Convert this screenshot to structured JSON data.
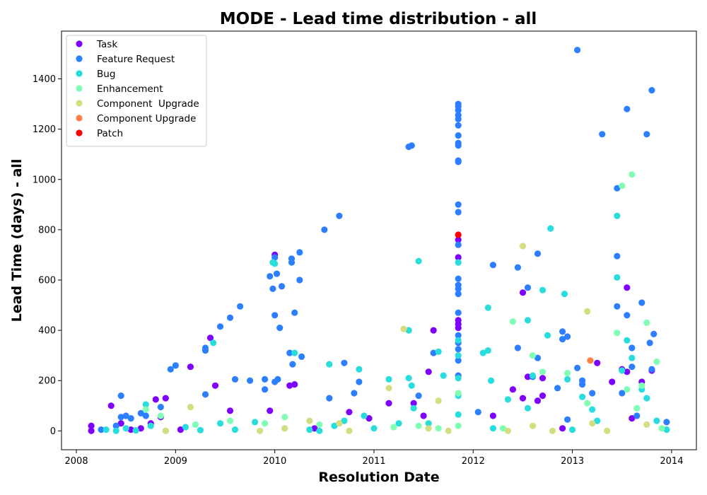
{
  "chart_data": {
    "type": "scatter",
    "title": "MODE - Lead time distribution - all",
    "xlabel": "Resolution Date",
    "ylabel": "Lead Time (days) - all",
    "xlim": [
      2007.85,
      2014.25
    ],
    "ylim": [
      -75,
      1590
    ],
    "x_ticks": [
      "2008",
      "2009",
      "2010",
      "2011",
      "2012",
      "2013",
      "2014"
    ],
    "y_ticks": [
      0,
      200,
      400,
      600,
      800,
      1000,
      1200,
      1400
    ],
    "grid": false,
    "legend_position": "top-left",
    "series": [
      {
        "name": "Task",
        "color": "#8000ff",
        "points": [
          [
            2008.15,
            20
          ],
          [
            2008.15,
            0
          ],
          [
            2008.35,
            100
          ],
          [
            2008.45,
            30
          ],
          [
            2008.55,
            5
          ],
          [
            2008.65,
            10
          ],
          [
            2008.75,
            30
          ],
          [
            2008.8,
            125
          ],
          [
            2008.85,
            55
          ],
          [
            2008.9,
            130
          ],
          [
            2009.05,
            5
          ],
          [
            2009.15,
            255
          ],
          [
            2009.35,
            370
          ],
          [
            2009.4,
            180
          ],
          [
            2009.55,
            80
          ],
          [
            2009.95,
            80
          ],
          [
            2010.0,
            700
          ],
          [
            2010.15,
            180
          ],
          [
            2010.2,
            185
          ],
          [
            2010.4,
            10
          ],
          [
            2010.75,
            75
          ],
          [
            2010.95,
            50
          ],
          [
            2011.15,
            110
          ],
          [
            2011.4,
            110
          ],
          [
            2011.5,
            60
          ],
          [
            2011.55,
            235
          ],
          [
            2011.6,
            400
          ],
          [
            2011.85,
            760
          ],
          [
            2011.85,
            690
          ],
          [
            2011.85,
            440
          ],
          [
            2011.85,
            410
          ],
          [
            2011.85,
            425
          ],
          [
            2012.2,
            60
          ],
          [
            2012.4,
            165
          ],
          [
            2012.5,
            550
          ],
          [
            2012.5,
            130
          ],
          [
            2012.55,
            215
          ],
          [
            2012.65,
            120
          ],
          [
            2012.7,
            140
          ],
          [
            2012.7,
            210
          ],
          [
            2012.9,
            10
          ],
          [
            2013.25,
            270
          ],
          [
            2013.4,
            195
          ],
          [
            2013.5,
            245
          ],
          [
            2013.55,
            570
          ],
          [
            2013.55,
            235
          ],
          [
            2013.6,
            50
          ],
          [
            2013.7,
            195
          ],
          [
            2013.8,
            240
          ]
        ]
      },
      {
        "name": "Feature Request",
        "color": "#2c7fff",
        "points": [
          [
            2008.25,
            5
          ],
          [
            2008.4,
            20
          ],
          [
            2008.45,
            140
          ],
          [
            2008.45,
            55
          ],
          [
            2008.5,
            60
          ],
          [
            2008.55,
            50
          ],
          [
            2008.65,
            70
          ],
          [
            2008.7,
            60
          ],
          [
            2008.85,
            95
          ],
          [
            2008.95,
            245
          ],
          [
            2009.0,
            260
          ],
          [
            2009.3,
            145
          ],
          [
            2009.3,
            330
          ],
          [
            2009.3,
            320
          ],
          [
            2009.45,
            415
          ],
          [
            2009.55,
            450
          ],
          [
            2009.6,
            205
          ],
          [
            2009.65,
            495
          ],
          [
            2009.75,
            200
          ],
          [
            2009.9,
            165
          ],
          [
            2009.9,
            205
          ],
          [
            2009.95,
            615
          ],
          [
            2009.98,
            565
          ],
          [
            2010.0,
            690
          ],
          [
            2010.0,
            460
          ],
          [
            2010.0,
            195
          ],
          [
            2010.02,
            625
          ],
          [
            2010.03,
            205
          ],
          [
            2010.05,
            410
          ],
          [
            2010.07,
            575
          ],
          [
            2010.15,
            310
          ],
          [
            2010.17,
            670
          ],
          [
            2010.17,
            685
          ],
          [
            2010.18,
            265
          ],
          [
            2010.2,
            470
          ],
          [
            2010.25,
            710
          ],
          [
            2010.25,
            600
          ],
          [
            2010.27,
            295
          ],
          [
            2010.5,
            800
          ],
          [
            2010.55,
            130
          ],
          [
            2010.65,
            855
          ],
          [
            2010.7,
            270
          ],
          [
            2010.8,
            150
          ],
          [
            2010.85,
            195
          ],
          [
            2011.35,
            1130
          ],
          [
            2011.38,
            1135
          ],
          [
            2011.45,
            140
          ],
          [
            2011.6,
            310
          ],
          [
            2011.85,
            1300
          ],
          [
            2011.85,
            1290
          ],
          [
            2011.85,
            1275
          ],
          [
            2011.85,
            1255
          ],
          [
            2011.85,
            1240
          ],
          [
            2011.85,
            1215
          ],
          [
            2011.85,
            1175
          ],
          [
            2011.85,
            1145
          ],
          [
            2011.85,
            1135
          ],
          [
            2011.85,
            1075
          ],
          [
            2011.85,
            1070
          ],
          [
            2011.85,
            900
          ],
          [
            2011.85,
            870
          ],
          [
            2011.85,
            740
          ],
          [
            2011.85,
            605
          ],
          [
            2011.85,
            580
          ],
          [
            2011.85,
            565
          ],
          [
            2011.85,
            545
          ],
          [
            2011.85,
            470
          ],
          [
            2011.85,
            380
          ],
          [
            2011.85,
            350
          ],
          [
            2011.85,
            325
          ],
          [
            2011.85,
            280
          ],
          [
            2011.85,
            220
          ],
          [
            2012.05,
            75
          ],
          [
            2012.2,
            660
          ],
          [
            2012.45,
            650
          ],
          [
            2012.45,
            330
          ],
          [
            2012.55,
            570
          ],
          [
            2012.6,
            215
          ],
          [
            2012.65,
            705
          ],
          [
            2012.65,
            290
          ],
          [
            2012.85,
            170
          ],
          [
            2012.9,
            395
          ],
          [
            2012.9,
            365
          ],
          [
            2012.95,
            375
          ],
          [
            2012.95,
            45
          ],
          [
            2013.05,
            1515
          ],
          [
            2013.05,
            250
          ],
          [
            2013.1,
            185
          ],
          [
            2013.1,
            200
          ],
          [
            2013.2,
            150
          ],
          [
            2013.3,
            1180
          ],
          [
            2013.45,
            965
          ],
          [
            2013.45,
            695
          ],
          [
            2013.45,
            495
          ],
          [
            2013.5,
            150
          ],
          [
            2013.55,
            460
          ],
          [
            2013.55,
            1280
          ],
          [
            2013.6,
            330
          ],
          [
            2013.6,
            255
          ],
          [
            2013.65,
            60
          ],
          [
            2013.7,
            510
          ],
          [
            2013.75,
            1180
          ],
          [
            2013.8,
            1355
          ],
          [
            2013.78,
            350
          ],
          [
            2013.8,
            245
          ],
          [
            2013.82,
            385
          ],
          [
            2013.95,
            35
          ]
        ]
      },
      {
        "name": "Bug",
        "color": "#2adddd",
        "points": [
          [
            2008.3,
            5
          ],
          [
            2008.4,
            0
          ],
          [
            2008.5,
            10
          ],
          [
            2008.6,
            2
          ],
          [
            2008.7,
            105
          ],
          [
            2008.75,
            20
          ],
          [
            2008.9,
            0
          ],
          [
            2009.1,
            15
          ],
          [
            2009.25,
            3
          ],
          [
            2009.38,
            350
          ],
          [
            2009.45,
            30
          ],
          [
            2009.6,
            5
          ],
          [
            2009.8,
            35
          ],
          [
            2009.98,
            670
          ],
          [
            2010.0,
            665
          ],
          [
            2010.1,
            10
          ],
          [
            2010.2,
            310
          ],
          [
            2010.35,
            5
          ],
          [
            2010.45,
            0
          ],
          [
            2010.55,
            265
          ],
          [
            2010.6,
            20
          ],
          [
            2010.7,
            40
          ],
          [
            2010.85,
            245
          ],
          [
            2010.9,
            60
          ],
          [
            2011.0,
            10
          ],
          [
            2011.15,
            205
          ],
          [
            2011.25,
            30
          ],
          [
            2011.35,
            400
          ],
          [
            2011.35,
            210
          ],
          [
            2011.38,
            180
          ],
          [
            2011.4,
            90
          ],
          [
            2011.45,
            675
          ],
          [
            2011.55,
            30
          ],
          [
            2011.65,
            315
          ],
          [
            2011.7,
            220
          ],
          [
            2011.85,
            670
          ],
          [
            2011.85,
            360
          ],
          [
            2011.85,
            300
          ],
          [
            2011.85,
            210
          ],
          [
            2011.85,
            140
          ],
          [
            2011.85,
            65
          ],
          [
            2012.1,
            310
          ],
          [
            2012.15,
            320
          ],
          [
            2012.15,
            490
          ],
          [
            2012.18,
            200
          ],
          [
            2012.2,
            10
          ],
          [
            2012.35,
            125
          ],
          [
            2012.55,
            440
          ],
          [
            2012.55,
            90
          ],
          [
            2012.6,
            220
          ],
          [
            2012.7,
            560
          ],
          [
            2012.75,
            380
          ],
          [
            2012.78,
            805
          ],
          [
            2012.92,
            545
          ],
          [
            2012.95,
            205
          ],
          [
            2013.0,
            5
          ],
          [
            2013.1,
            135
          ],
          [
            2013.2,
            85
          ],
          [
            2013.25,
            40
          ],
          [
            2013.45,
            855
          ],
          [
            2013.45,
            610
          ],
          [
            2013.5,
            240
          ],
          [
            2013.55,
            360
          ],
          [
            2013.6,
            290
          ],
          [
            2013.7,
            165
          ],
          [
            2013.75,
            130
          ],
          [
            2013.85,
            40
          ],
          [
            2013.95,
            5
          ]
        ]
      },
      {
        "name": "Enhancement",
        "color": "#80ffb4",
        "points": [
          [
            2008.7,
            85
          ],
          [
            2008.85,
            60
          ],
          [
            2009.2,
            25
          ],
          [
            2009.55,
            40
          ],
          [
            2009.9,
            30
          ],
          [
            2010.1,
            55
          ],
          [
            2010.45,
            25
          ],
          [
            2010.65,
            30
          ],
          [
            2011.2,
            15
          ],
          [
            2011.45,
            20
          ],
          [
            2011.65,
            10
          ],
          [
            2011.85,
            150
          ],
          [
            2011.85,
            20
          ],
          [
            2012.3,
            10
          ],
          [
            2012.4,
            435
          ],
          [
            2012.6,
            300
          ],
          [
            2012.7,
            235
          ],
          [
            2012.95,
            230
          ],
          [
            2013.15,
            110
          ],
          [
            2013.45,
            390
          ],
          [
            2013.5,
            975
          ],
          [
            2013.55,
            165
          ],
          [
            2013.6,
            1020
          ],
          [
            2013.65,
            90
          ],
          [
            2013.7,
            180
          ],
          [
            2013.75,
            430
          ],
          [
            2013.85,
            275
          ],
          [
            2013.9,
            10
          ]
        ]
      },
      {
        "name": "Component  Upgrade",
        "color": "#d4dd80",
        "points": [
          [
            2008.9,
            0
          ],
          [
            2009.15,
            95
          ],
          [
            2009.85,
            0
          ],
          [
            2010.1,
            10
          ],
          [
            2010.35,
            40
          ],
          [
            2010.65,
            30
          ],
          [
            2010.75,
            0
          ],
          [
            2011.15,
            170
          ],
          [
            2011.3,
            405
          ],
          [
            2011.55,
            10
          ],
          [
            2011.65,
            120
          ],
          [
            2011.75,
            0
          ],
          [
            2012.35,
            0
          ],
          [
            2012.5,
            735
          ],
          [
            2012.6,
            20
          ],
          [
            2012.8,
            0
          ],
          [
            2013.15,
            475
          ],
          [
            2013.2,
            30
          ],
          [
            2013.35,
            0
          ],
          [
            2013.75,
            25
          ]
        ]
      },
      {
        "name": "Component Upgrade",
        "color": "#ff8040",
        "points": [
          [
            2013.18,
            280
          ]
        ]
      },
      {
        "name": "Patch",
        "color": "#ff0000",
        "points": [
          [
            2011.85,
            780
          ]
        ]
      }
    ]
  }
}
